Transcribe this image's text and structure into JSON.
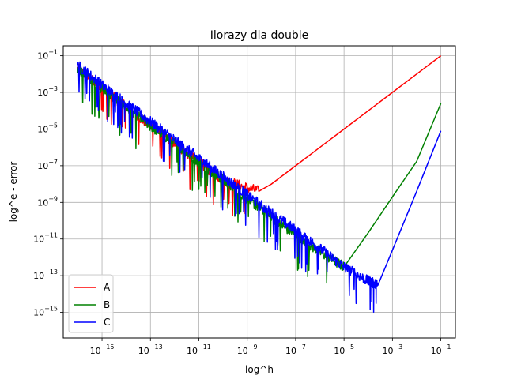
{
  "chart_data": {
    "type": "line",
    "title": "Ilorazy dla double",
    "xlabel": "log^h",
    "ylabel": "log^e - error",
    "x_scale": "log",
    "y_scale": "log",
    "xlim": [
      2.5e-17,
      0.4
    ],
    "ylim": [
      4e-17,
      0.35
    ],
    "x_ticks": [
      {
        "value": 1e-15,
        "base": "10",
        "exp": "−15"
      },
      {
        "value": 1e-13,
        "base": "10",
        "exp": "−13"
      },
      {
        "value": 1e-11,
        "base": "10",
        "exp": "−11"
      },
      {
        "value": 1e-09,
        "base": "10",
        "exp": "−9"
      },
      {
        "value": 1e-07,
        "base": "10",
        "exp": "−7"
      },
      {
        "value": 1e-05,
        "base": "10",
        "exp": "−5"
      },
      {
        "value": 0.001,
        "base": "10",
        "exp": "−3"
      },
      {
        "value": 0.1,
        "base": "10",
        "exp": "−1"
      }
    ],
    "y_ticks": [
      {
        "value": 1e-15,
        "base": "10",
        "exp": "−15"
      },
      {
        "value": 1e-13,
        "base": "10",
        "exp": "−13"
      },
      {
        "value": 1e-11,
        "base": "10",
        "exp": "−11"
      },
      {
        "value": 1e-09,
        "base": "10",
        "exp": "−9"
      },
      {
        "value": 1e-07,
        "base": "10",
        "exp": "−7"
      },
      {
        "value": 1e-05,
        "base": "10",
        "exp": "−5"
      },
      {
        "value": 0.001,
        "base": "10",
        "exp": "−3"
      },
      {
        "value": 0.1,
        "base": "10",
        "exp": "−1"
      }
    ],
    "grid": true,
    "legend_position": "lower-left",
    "series": [
      {
        "name": "A",
        "color": "#ff0000",
        "x": [
          1e-16,
          1e-15,
          1e-14,
          1e-13,
          1e-12,
          1e-11,
          1e-10,
          3e-09,
          1e-08,
          1e-07,
          1e-06,
          1e-05,
          0.0001,
          0.001,
          0.01,
          0.1
        ],
        "y": [
          0.02,
          0.0015,
          0.00015,
          1.5e-05,
          1.6e-06,
          1.5e-07,
          1.6e-08,
          4e-09,
          1e-08,
          1e-07,
          1e-06,
          1e-05,
          0.0001,
          0.001,
          0.01,
          0.1
        ]
      },
      {
        "name": "B",
        "color": "#008000",
        "x": [
          1e-16,
          1e-15,
          1e-14,
          1e-13,
          1e-12,
          1e-11,
          1e-10,
          1e-09,
          1e-08,
          1e-07,
          1e-06,
          1e-05,
          0.0001,
          0.001,
          0.01,
          0.1
        ],
        "y": [
          0.02,
          0.0015,
          0.00015,
          1.5e-05,
          1.6e-06,
          1.5e-07,
          1.6e-08,
          1.6e-09,
          1.6e-10,
          1.6e-11,
          2e-12,
          3e-13,
          2.2e-11,
          2e-09,
          1.7e-07,
          0.00025
        ]
      },
      {
        "name": "C",
        "color": "#0000ff",
        "x": [
          1e-16,
          1e-15,
          1e-14,
          1e-13,
          1e-12,
          1e-11,
          1e-10,
          1e-09,
          1e-08,
          1e-07,
          1e-06,
          1e-05,
          0.0001,
          0.00025,
          0.001,
          0.01,
          0.1
        ],
        "y": [
          0.03,
          0.0025,
          0.00025,
          2.5e-05,
          2.5e-06,
          2.5e-07,
          2.5e-08,
          2.5e-09,
          2.5e-10,
          3e-11,
          3e-12,
          3e-13,
          5e-14,
          3e-14,
          2.5e-12,
          4e-09,
          8e-06
        ]
      }
    ]
  }
}
